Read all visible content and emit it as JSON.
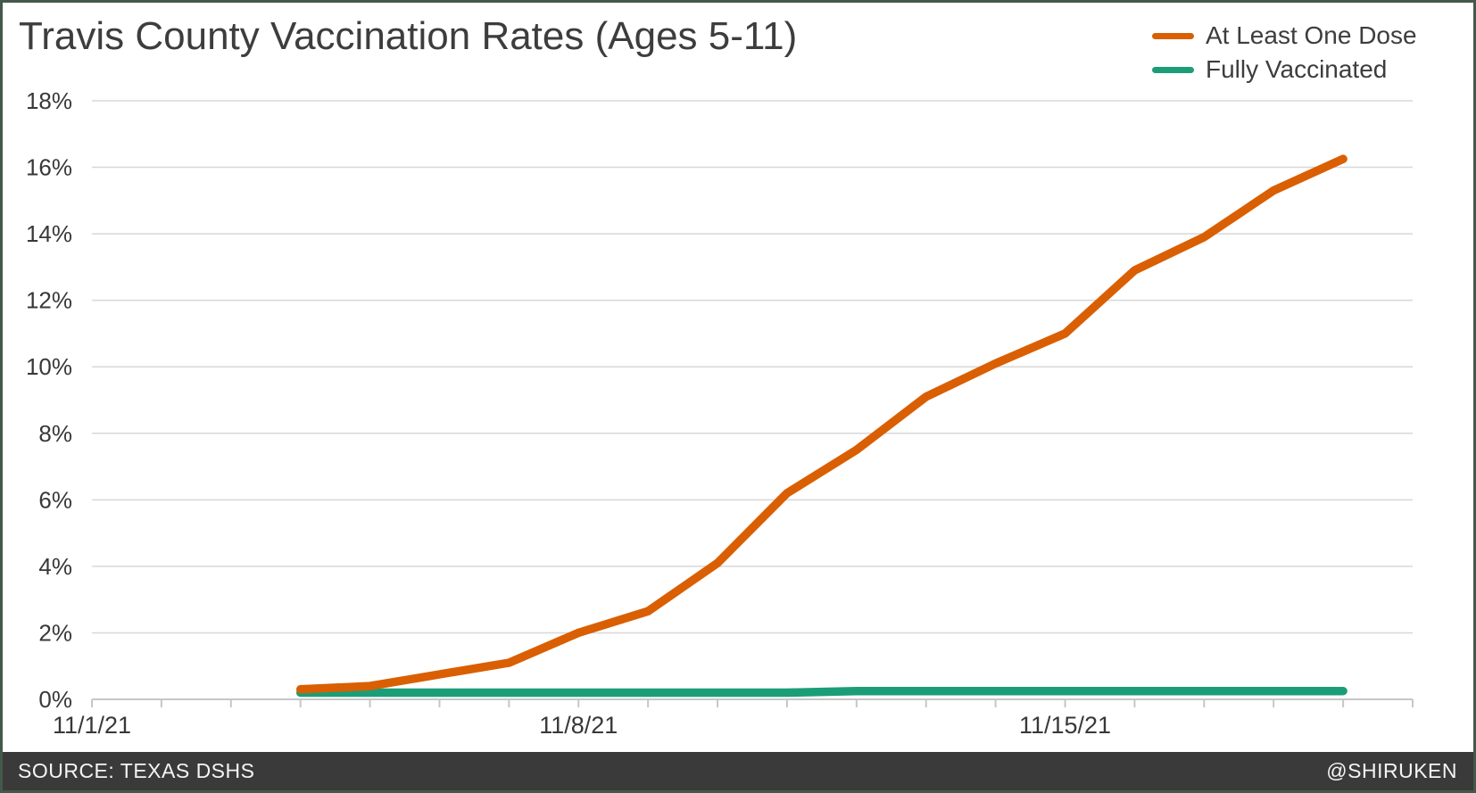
{
  "title": "Travis County Vaccination Rates (Ages 5-11)",
  "legend": [
    {
      "label": "At Least One Dose",
      "color": "#d95f02"
    },
    {
      "label": "Fully Vaccinated",
      "color": "#1b9e77"
    }
  ],
  "footer": {
    "source": "SOURCE: TEXAS DSHS",
    "credit": "@SHIRUKEN"
  },
  "colors": {
    "one_dose_line": "#d95f02",
    "fully_vaccinated_line": "#1b9e77",
    "footer_background": "#3a3a3a",
    "frame_border": "#44584b",
    "gridline": "#d8d8d8",
    "axis": "#c6c6c6",
    "text_dark": "#3d3d3d",
    "axis_label": "#383838"
  },
  "chart_data": {
    "type": "line",
    "title": "Travis County Vaccination Rates (Ages 5-11)",
    "grid": true,
    "legend_position": "top-right",
    "x_axis": {
      "unit": "date",
      "min_day": 1,
      "max_day": 20,
      "month": 11,
      "year": "21",
      "tick_every_days": 1,
      "labeled_ticks": [
        {
          "day": 1,
          "label": "11/1/21"
        },
        {
          "day": 8,
          "label": "11/8/21"
        },
        {
          "day": 15,
          "label": "11/15/21"
        }
      ]
    },
    "y_axis": {
      "min": 0,
      "max": 18,
      "step": 2,
      "suffix": "%",
      "tick_labels": [
        "0%",
        "2%",
        "4%",
        "6%",
        "8%",
        "10%",
        "12%",
        "14%",
        "16%",
        "18%"
      ]
    },
    "x_dates": [
      "11/4/21",
      "11/5/21",
      "11/6/21",
      "11/7/21",
      "11/8/21",
      "11/9/21",
      "11/10/21",
      "11/11/21",
      "11/12/21",
      "11/13/21",
      "11/14/21",
      "11/15/21",
      "11/16/21",
      "11/17/21",
      "11/18/21",
      "11/19/21"
    ],
    "x_days": [
      4,
      5,
      6,
      7,
      8,
      9,
      10,
      11,
      12,
      13,
      14,
      15,
      16,
      17,
      18,
      19
    ],
    "series": [
      {
        "name": "At Least One Dose",
        "color": "#d95f02",
        "values": [
          0.3,
          0.4,
          0.75,
          1.1,
          2.0,
          2.65,
          4.1,
          6.2,
          7.5,
          9.1,
          10.1,
          11.0,
          12.9,
          13.9,
          15.3,
          16.25
        ]
      },
      {
        "name": "Fully Vaccinated",
        "color": "#1b9e77",
        "values": [
          0.2,
          0.2,
          0.2,
          0.2,
          0.2,
          0.2,
          0.2,
          0.2,
          0.25,
          0.25,
          0.25,
          0.25,
          0.25,
          0.25,
          0.25,
          0.25
        ]
      }
    ]
  }
}
